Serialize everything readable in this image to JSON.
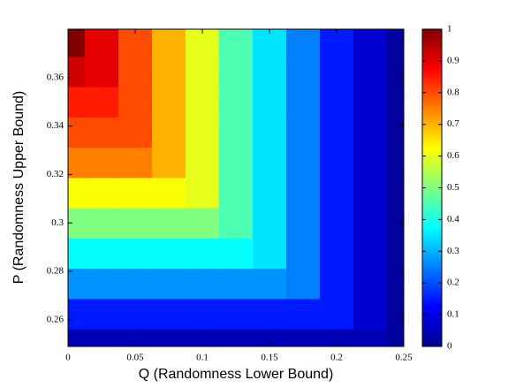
{
  "chart_data": {
    "type": "heatmap",
    "xlabel": "Q (Randomness Lower Bound)",
    "ylabel": "P (Randomness Upper Bound)",
    "colormap": "jet",
    "x": [
      0,
      0.025,
      0.05,
      0.075,
      0.1,
      0.125,
      0.15,
      0.175,
      0.2,
      0.225,
      0.25
    ],
    "y": [
      0.25,
      0.2625,
      0.275,
      0.2875,
      0.3,
      0.3125,
      0.325,
      0.3375,
      0.35,
      0.3625,
      0.375
    ],
    "z": [
      [
        0.05,
        0.05,
        0.05,
        0.05,
        0.05,
        0.05,
        0.05,
        0.05,
        0.05,
        0.05,
        0.03
      ],
      [
        0.15,
        0.15,
        0.15,
        0.15,
        0.15,
        0.15,
        0.15,
        0.15,
        0.15,
        0.08,
        0.03
      ],
      [
        0.27,
        0.27,
        0.27,
        0.27,
        0.27,
        0.27,
        0.27,
        0.25,
        0.15,
        0.08,
        0.03
      ],
      [
        0.38,
        0.38,
        0.38,
        0.38,
        0.38,
        0.38,
        0.35,
        0.25,
        0.15,
        0.08,
        0.03
      ],
      [
        0.5,
        0.5,
        0.5,
        0.5,
        0.5,
        0.45,
        0.35,
        0.25,
        0.15,
        0.08,
        0.03
      ],
      [
        0.62,
        0.62,
        0.62,
        0.62,
        0.6,
        0.45,
        0.35,
        0.25,
        0.15,
        0.08,
        0.03
      ],
      [
        0.75,
        0.75,
        0.75,
        0.7,
        0.6,
        0.45,
        0.35,
        0.25,
        0.15,
        0.08,
        0.03
      ],
      [
        0.8,
        0.8,
        0.8,
        0.7,
        0.6,
        0.45,
        0.35,
        0.25,
        0.15,
        0.08,
        0.03
      ],
      [
        0.85,
        0.85,
        0.8,
        0.7,
        0.6,
        0.45,
        0.35,
        0.25,
        0.15,
        0.08,
        0.03
      ],
      [
        0.92,
        0.9,
        0.8,
        0.7,
        0.6,
        0.45,
        0.35,
        0.25,
        0.15,
        0.08,
        0.03
      ],
      [
        1,
        0.9,
        0.8,
        0.7,
        0.6,
        0.45,
        0.35,
        0.25,
        0.15,
        0.08,
        0.03
      ]
    ],
    "xlim": [
      0,
      0.25
    ],
    "xticks": [
      0,
      0.05,
      0.1,
      0.15,
      0.2,
      0.25
    ],
    "ylim": [
      0.249,
      0.38
    ],
    "yticks": [
      0.26,
      0.28,
      0.3,
      0.32,
      0.34,
      0.36
    ],
    "clim": [
      0,
      1
    ],
    "cticks": [
      0,
      0.1,
      0.2,
      0.3,
      0.4,
      0.5,
      0.6,
      0.7,
      0.8,
      0.9,
      1
    ]
  }
}
